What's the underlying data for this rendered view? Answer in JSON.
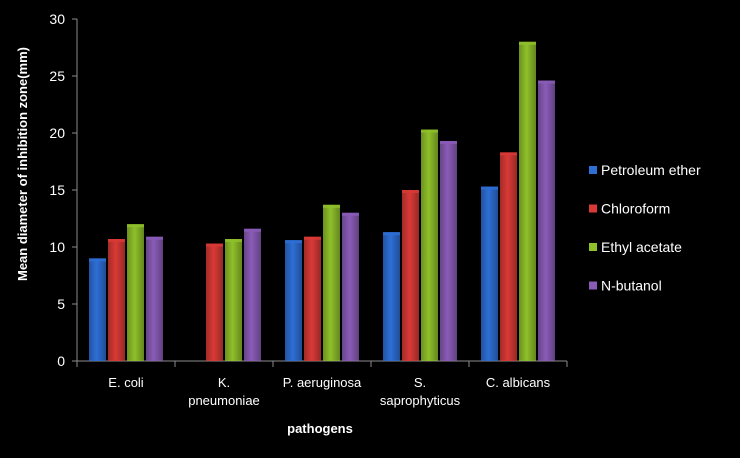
{
  "chart_data": {
    "type": "bar",
    "title": "",
    "xlabel": "pathogens",
    "ylabel": "Mean diameter of inhibition zone(mm)",
    "ylim": [
      0,
      30
    ],
    "yticks": [
      0,
      5,
      10,
      15,
      20,
      25,
      30
    ],
    "grid": false,
    "legend_position": "right",
    "categories": [
      [
        "E. coli"
      ],
      [
        "K.",
        "pneumoniae"
      ],
      [
        "P. aeruginosa"
      ],
      [
        "S.",
        "saprophyticus"
      ],
      [
        "C. albicans"
      ]
    ],
    "series": [
      {
        "name": "Petroleum ether",
        "color": "#2e6fd6",
        "values": [
          9.0,
          0,
          10.6,
          11.3,
          15.3
        ]
      },
      {
        "name": "Chloroform",
        "color": "#d93a36",
        "values": [
          10.7,
          10.3,
          10.9,
          15.0,
          18.3
        ]
      },
      {
        "name": "Ethyl acetate",
        "color": "#8fc02a",
        "values": [
          12.0,
          10.7,
          13.7,
          20.3,
          28.0
        ]
      },
      {
        "name": "N-butanol",
        "color": "#8a5cb8",
        "values": [
          10.9,
          11.6,
          13.0,
          19.3,
          24.6
        ]
      }
    ]
  }
}
